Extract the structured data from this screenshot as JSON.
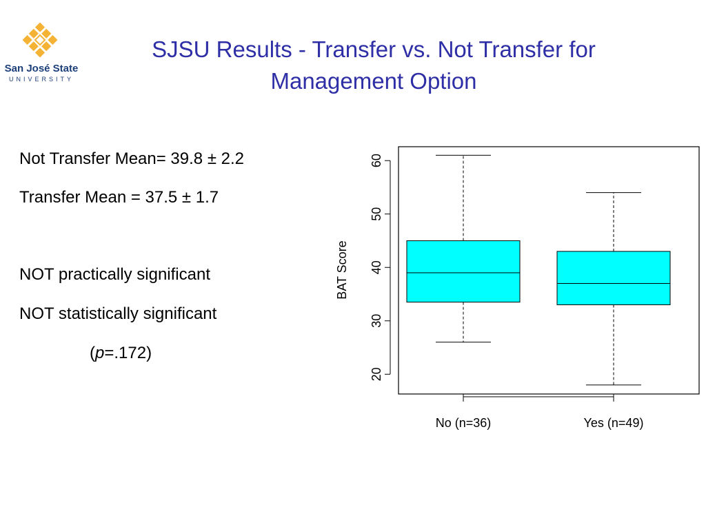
{
  "logo": {
    "name": "San José State",
    "sub": "UNIVERSITY"
  },
  "header": {
    "title_lines": [
      "SJSU Results - Transfer vs. Not Transfer for",
      "Management Option"
    ]
  },
  "body": {
    "lines": [
      "Not Transfer Mean= 39.8 ± 2.2",
      "Transfer Mean = 37.5 ± 1.7",
      "NOT practically significant",
      "NOT statistically significant"
    ],
    "p_value": {
      "open": "(",
      "symbol": "p",
      "rest": "=.172)"
    }
  },
  "chart_data": {
    "type": "box",
    "ylabel": "BAT Score",
    "categories": [
      "No (n=36)",
      "Yes (n=49)"
    ],
    "min": [
      26,
      18
    ],
    "q1": [
      33.5,
      33
    ],
    "median": [
      39,
      37
    ],
    "q3": [
      45,
      43
    ],
    "max": [
      61,
      54
    ],
    "color": "#00ffff",
    "ylim": [
      16.3,
      62.6
    ],
    "yticks": [
      20,
      30,
      40,
      50,
      60
    ]
  }
}
